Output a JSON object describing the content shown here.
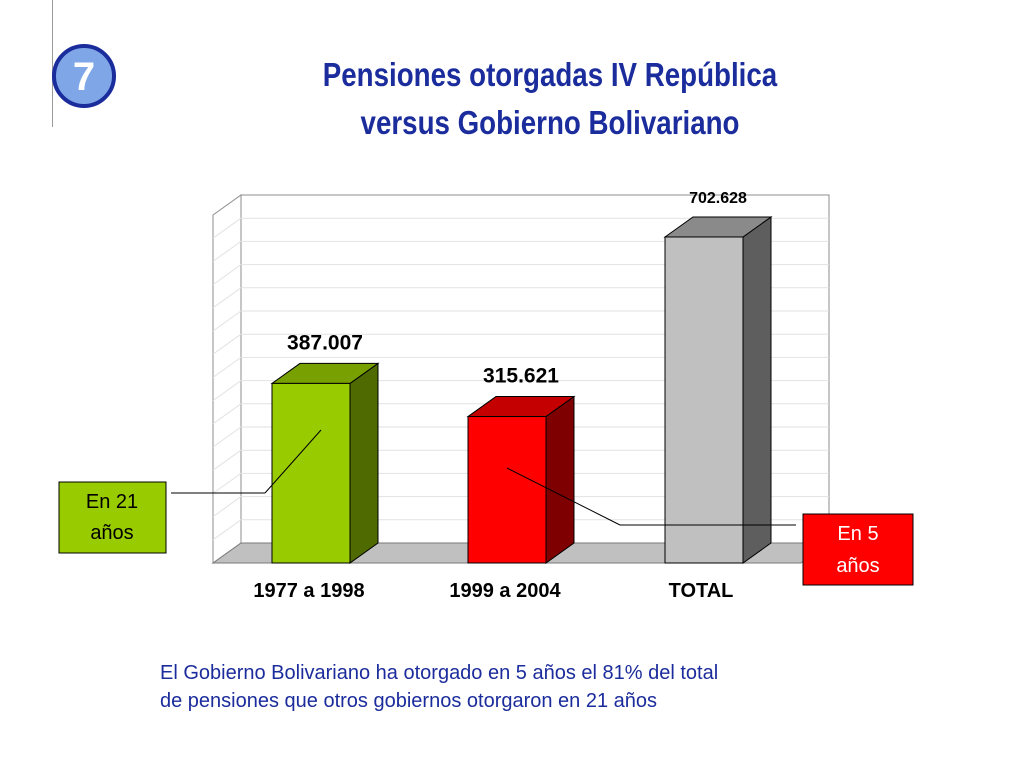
{
  "slide": {
    "number": "7",
    "title_line1": "Pensiones otorgadas IV República",
    "title_line2": "versus Gobierno Bolivariano",
    "note_line1": "El Gobierno  Bolivariano ha otorgado en 5 años el 81% del total",
    "note_line2": "de pensiones que otros gobiernos otorgaron en 21 años"
  },
  "callouts": {
    "left_line1": "En 21",
    "left_line2": "años",
    "right_line1": "En 5",
    "right_line2": "años"
  },
  "colors": {
    "title": "#1b2c9c",
    "bar_green": "#99cc00",
    "bar_red": "#ff0000",
    "bar_gray": "#c0c0c0",
    "callout_left_bg": "#99cc00",
    "callout_right_bg": "#ff0000"
  },
  "chart_data": {
    "type": "bar",
    "style": "3d",
    "categories": [
      "1977 a 1998",
      "1999 a 2004",
      "TOTAL"
    ],
    "values": [
      387007,
      315621,
      702628
    ],
    "value_labels": [
      "387.007",
      "315.621",
      "702.628"
    ],
    "title": "",
    "xlabel": "",
    "ylabel": "",
    "ylim": [
      0,
      750000
    ],
    "grid": true,
    "legend": "none"
  }
}
